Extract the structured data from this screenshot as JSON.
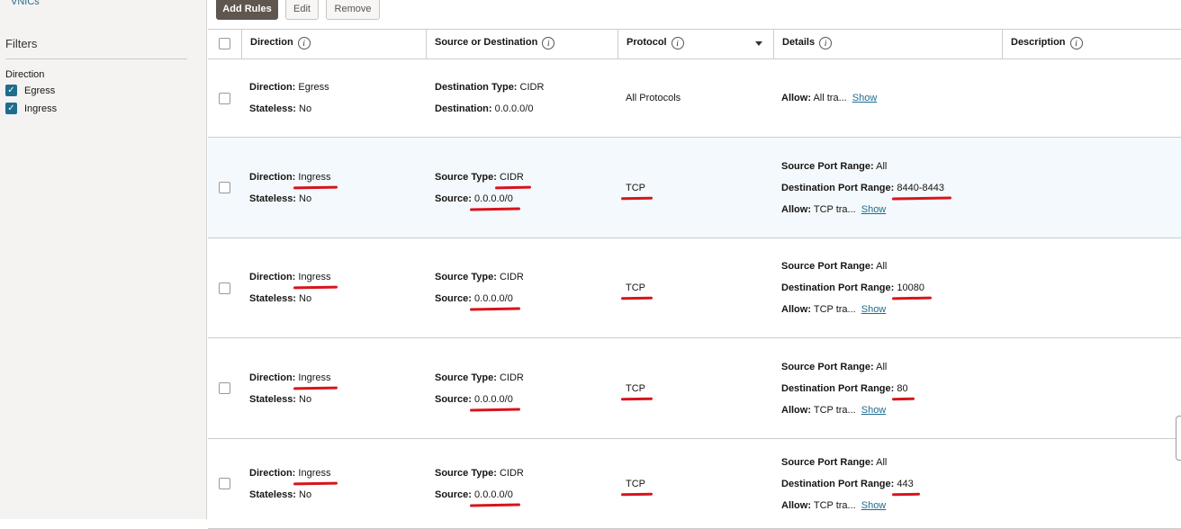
{
  "sidebar": {
    "link": "VNICs",
    "filters_title": "Filters",
    "direction_label": "Direction",
    "options": [
      {
        "label": "Egress",
        "checked": true
      },
      {
        "label": "Ingress",
        "checked": true
      }
    ]
  },
  "toolbar": {
    "add": "Add Rules",
    "edit": "Edit",
    "remove": "Remove"
  },
  "columns": [
    "Direction",
    "Source or Destination",
    "Protocol",
    "Details",
    "Description"
  ],
  "labels": {
    "direction": "Direction:",
    "stateless": "Stateless:",
    "dest_type": "Destination Type:",
    "dest": "Destination:",
    "src_type": "Source Type:",
    "src": "Source:",
    "spr": "Source Port Range:",
    "dpr": "Destination Port Range:",
    "allow": "Allow:",
    "show": "Show"
  },
  "rows": [
    {
      "direction": "Egress",
      "stateless": "No",
      "type": "CIDR",
      "addr": "0.0.0.0/0",
      "protocol": "All Protocols",
      "allow": "All tra..."
    },
    {
      "direction": "Ingress",
      "stateless": "No",
      "type": "CIDR",
      "addr": "0.0.0.0/0",
      "protocol": "TCP",
      "spr": "All",
      "dpr": "8440-8443",
      "allow": "TCP tra..."
    },
    {
      "direction": "Ingress",
      "stateless": "No",
      "type": "CIDR",
      "addr": "0.0.0.0/0",
      "protocol": "TCP",
      "spr": "All",
      "dpr": "10080",
      "allow": "TCP tra..."
    },
    {
      "direction": "Ingress",
      "stateless": "No",
      "type": "CIDR",
      "addr": "0.0.0.0/0",
      "protocol": "TCP",
      "spr": "All",
      "dpr": "80",
      "allow": "TCP tra..."
    },
    {
      "direction": "Ingress",
      "stateless": "No",
      "type": "CIDR",
      "addr": "0.0.0.0/0",
      "protocol": "TCP",
      "spr": "All",
      "dpr": "443",
      "allow": "TCP tra..."
    }
  ],
  "colors": {
    "primary_button": "#5f5650",
    "link": "#1f6c8f",
    "annotation": "#d8141c",
    "highlight_row": "#f3f9fc"
  }
}
